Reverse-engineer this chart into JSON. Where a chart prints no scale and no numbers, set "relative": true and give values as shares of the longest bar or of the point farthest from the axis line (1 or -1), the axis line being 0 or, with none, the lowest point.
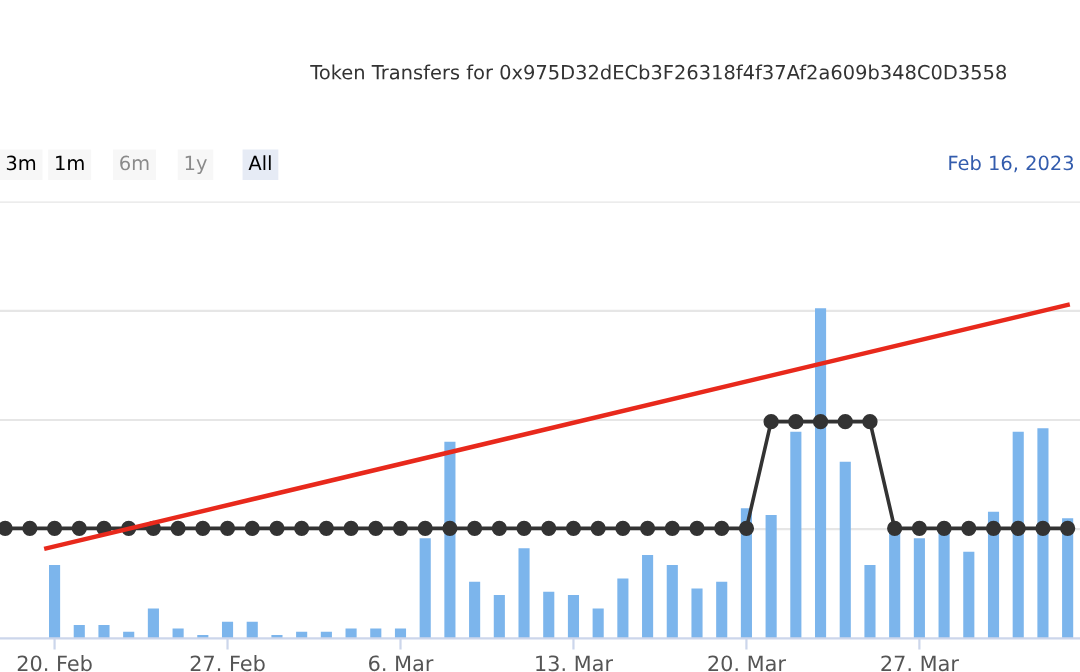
{
  "chart_data": {
    "type": "bar",
    "title": "Token Transfers for 0x975D32dECb3F26318f4f37Af2a609b348C0D3558",
    "annotations": [
      "3m",
      "1m",
      "6m",
      "1y",
      "All",
      "Feb 16, 2023"
    ],
    "relative": true,
    "grid": "y",
    "x": [
      "2023-02-18",
      "2023-02-19",
      "2023-02-20",
      "2023-02-21",
      "2023-02-22",
      "2023-02-23",
      "2023-02-24",
      "2023-02-25",
      "2023-02-26",
      "2023-02-27",
      "2023-02-28",
      "2023-03-01",
      "2023-03-02",
      "2023-03-03",
      "2023-03-04",
      "2023-03-05",
      "2023-03-06",
      "2023-03-07",
      "2023-03-08",
      "2023-03-09",
      "2023-03-10",
      "2023-03-11",
      "2023-03-12",
      "2023-03-13",
      "2023-03-14",
      "2023-03-15",
      "2023-03-16",
      "2023-03-17",
      "2023-03-18",
      "2023-03-19",
      "2023-03-20",
      "2023-03-21",
      "2023-03-22",
      "2023-03-23",
      "2023-03-24",
      "2023-03-25",
      "2023-03-26",
      "2023-03-27",
      "2023-03-28",
      "2023-03-29",
      "2023-03-30",
      "2023-03-31",
      "2023-04-01",
      "2023-04-02"
    ],
    "xlim": [
      "2023-02-17T19:00",
      "2023-04-02T12:00"
    ],
    "xticks": [
      {
        "value": "2023-02-20",
        "label": "20. Feb"
      },
      {
        "value": "2023-02-27",
        "label": "27. Feb"
      },
      {
        "value": "2023-03-06",
        "label": "6. Mar"
      },
      {
        "value": "2023-03-13",
        "label": "13. Mar"
      },
      {
        "value": "2023-03-20",
        "label": "20. Mar"
      },
      {
        "value": "2023-03-27",
        "label": "27. Mar"
      }
    ],
    "series": [
      {
        "color": "#7cb5ec",
        "values": [
          null,
          null,
          0.22,
          0.04,
          0.04,
          0.02,
          0.09,
          0.03,
          0.01,
          0.05,
          0.05,
          0.01,
          0.02,
          0.02,
          0.03,
          0.03,
          0.03,
          0.3,
          0.59,
          0.17,
          0.13,
          0.27,
          0.14,
          0.13,
          0.09,
          0.18,
          0.25,
          0.22,
          0.15,
          0.17,
          0.39,
          0.37,
          0.62,
          0.99,
          0.53,
          0.22,
          0.32,
          0.3,
          0.32,
          0.26,
          0.38,
          0.62,
          0.63,
          0.36
        ]
      },
      {
        "type": "line",
        "color": "#333333",
        "marker": "circle",
        "line_style": "solid",
        "values": [
          0.33,
          0.33,
          0.33,
          0.33,
          0.33,
          0.33,
          0.33,
          0.33,
          0.33,
          0.33,
          0.33,
          0.33,
          0.33,
          0.33,
          0.33,
          0.33,
          0.33,
          0.33,
          0.33,
          0.33,
          0.33,
          0.33,
          0.33,
          0.33,
          0.33,
          0.33,
          0.33,
          0.33,
          0.33,
          0.33,
          0.33,
          0.65,
          0.65,
          0.65,
          0.65,
          0.65,
          0.33,
          0.33,
          0.33,
          0.33,
          0.33,
          0.33,
          0.33,
          0.33
        ]
      },
      {
        "type": "line",
        "color": "#e8291c",
        "line_style": "solid",
        "x": [
          "2023-02-19T16:00",
          "2023-04-02"
        ],
        "values": [
          0.27,
          1.0
        ]
      }
    ]
  }
}
